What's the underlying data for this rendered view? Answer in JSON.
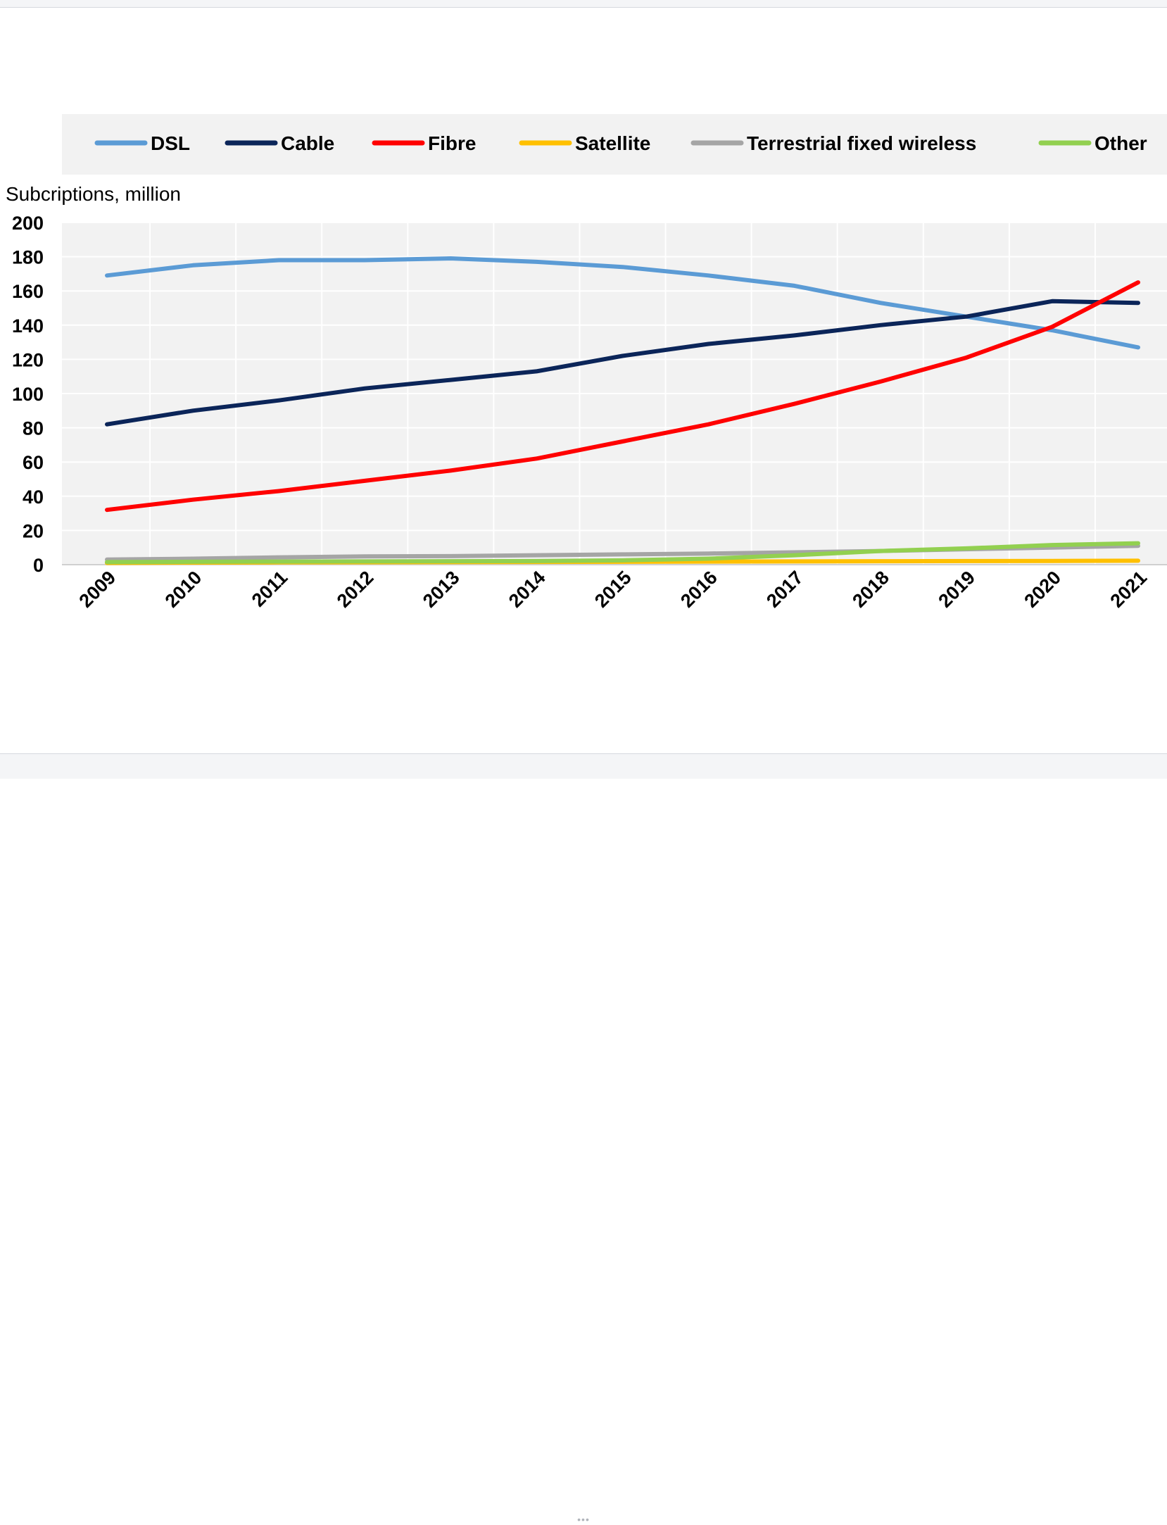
{
  "window": {
    "resize_grip": "•••"
  },
  "chart_data": {
    "type": "line",
    "ylabel": "Subcriptions, million",
    "ylim": [
      0,
      200
    ],
    "yticks": [
      0,
      20,
      40,
      60,
      80,
      100,
      120,
      140,
      160,
      180,
      200
    ],
    "x": [
      "2009",
      "2010",
      "2011",
      "2012",
      "2013",
      "2014",
      "2015",
      "2016",
      "2017",
      "2018",
      "2019",
      "2020",
      "2021"
    ],
    "grid": true,
    "legend_position": "top",
    "series": [
      {
        "name": "DSL",
        "color": "#5b9bd5",
        "values": [
          169,
          175,
          178,
          178,
          179,
          177,
          174,
          169,
          163,
          153,
          145,
          137,
          127
        ]
      },
      {
        "name": "Cable",
        "color": "#0b2559",
        "values": [
          82,
          90,
          96,
          103,
          108,
          113,
          122,
          129,
          134,
          140,
          145,
          154,
          153
        ]
      },
      {
        "name": "Fibre",
        "color": "#ff0000",
        "values": [
          32,
          38,
          43,
          49,
          55,
          62,
          72,
          82,
          94,
          107,
          121,
          139,
          165
        ]
      },
      {
        "name": "Satellite",
        "color": "#ffc000",
        "values": [
          1,
          1.2,
          1.3,
          1.4,
          1.5,
          1.6,
          1.7,
          1.8,
          1.9,
          2.0,
          2.1,
          2.2,
          2.3
        ]
      },
      {
        "name": "Terrestrial fixed wireless",
        "color": "#a5a5a5",
        "values": [
          3,
          3.5,
          4.3,
          4.8,
          5.0,
          5.5,
          6.0,
          6.5,
          7.2,
          8.0,
          9.0,
          10.0,
          11.0
        ]
      },
      {
        "name": "Other",
        "color": "#92d050",
        "values": [
          1.5,
          1.7,
          1.8,
          1.9,
          2.0,
          2.1,
          2.5,
          3.5,
          5.5,
          8.0,
          9.5,
          11.5,
          12.5
        ]
      }
    ]
  }
}
